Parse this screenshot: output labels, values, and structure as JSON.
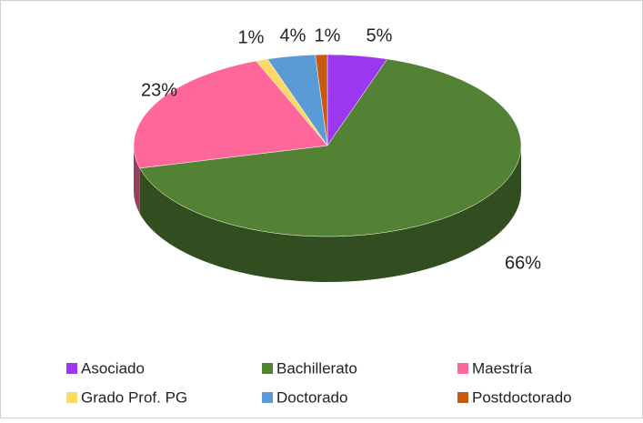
{
  "chart_data": {
    "type": "pie",
    "categories": [
      "Asociado",
      "Bachillerato",
      "Maestría",
      "Grado Prof. PG",
      "Doctorado",
      "Postdoctorado"
    ],
    "values": [
      5,
      66,
      23,
      1,
      4,
      1
    ],
    "value_labels": [
      "5%",
      "66%",
      "23%",
      "1%",
      "4%",
      "1%"
    ],
    "colors": [
      "#9b37f0",
      "#548235",
      "#ff6699",
      "#ffd966",
      "#5b9bd5",
      "#c55a11"
    ],
    "legend": "bottom"
  }
}
